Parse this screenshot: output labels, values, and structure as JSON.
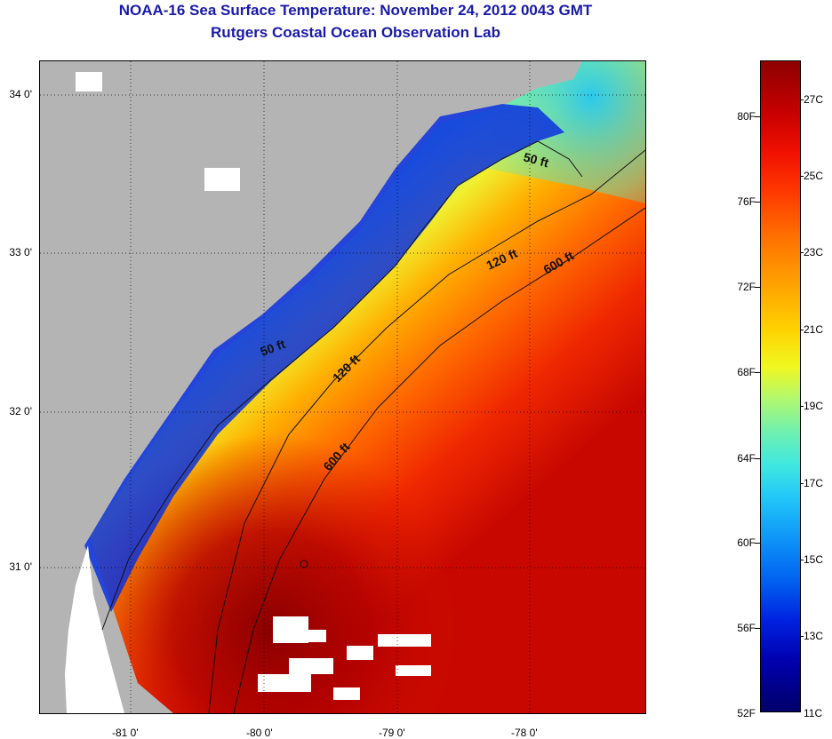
{
  "title": {
    "line1": "NOAA-16 Sea Surface Temperature:  November 24, 2012 0043 GMT",
    "line2": "Rutgers Coastal Ocean Observation Lab"
  },
  "map": {
    "lat_labels": [
      "34 0'",
      "33 0'",
      "32 0'",
      "31 0'"
    ],
    "lon_labels": [
      "-81 0'",
      "-80 0'",
      "-79 0'",
      "-78 0'"
    ],
    "contours": [
      {
        "label": "50 ft"
      },
      {
        "label": "50 ft"
      },
      {
        "label": "120 ft"
      },
      {
        "label": "120 ft"
      },
      {
        "label": "600 ft"
      },
      {
        "label": "600 ft"
      }
    ],
    "colors": {
      "land": "#b4b4b4",
      "cloud": "#ffffff",
      "cold_water": "#0028d8",
      "warm_water": "#ff3800",
      "hot_water": "#9a0000"
    }
  },
  "colorbar": {
    "fahrenheit": [
      "80F",
      "76F",
      "72F",
      "68F",
      "64F",
      "60F",
      "56F",
      "52F"
    ],
    "celsius": [
      "27C",
      "25C",
      "23C",
      "21C",
      "19C",
      "17C",
      "15C",
      "13C",
      "11C"
    ]
  }
}
